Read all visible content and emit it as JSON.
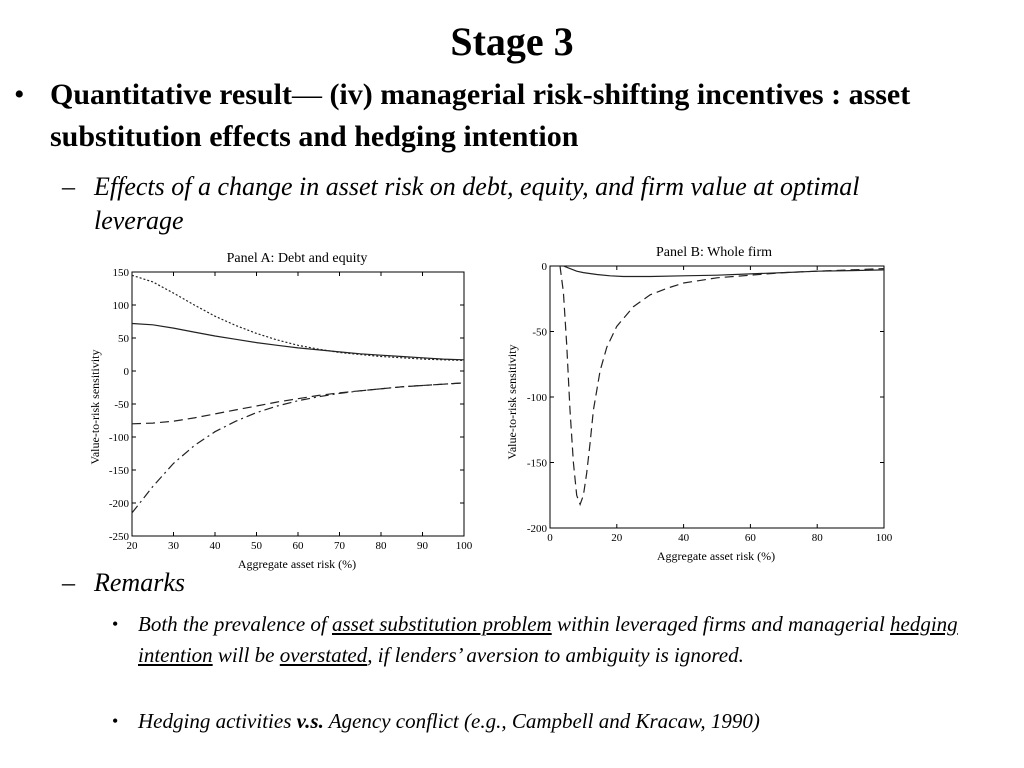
{
  "slide": {
    "title": "Stage 3",
    "bullet1": {
      "mark": "•",
      "lead": "Quantitative result",
      "dash": "—",
      "rest": " (iv) managerial risk-shifting incentives : asset substitution effects and hedging intention"
    },
    "sub1": {
      "mark": "–",
      "text": "Effects of a change in asset risk on debt, equity, and firm value at optimal leverage"
    },
    "sub2": {
      "mark": "–",
      "text": "Remarks"
    },
    "remark1": {
      "mark": "•",
      "p1": "Both the prevalence of ",
      "u1": "asset substitution problem",
      "p2": " within leveraged firms and managerial ",
      "u2": "hedging intention",
      "p3": " will be ",
      "u3": "overstated",
      "p4": ", if lenders’ aversion to ambiguity is ignored."
    },
    "remark2": {
      "mark": "•",
      "p1": "Hedging activities ",
      "b1": "v.s.",
      "p2": " Agency conflict (e.g., Campbell and Kracaw, 1990)"
    }
  },
  "chart_data": [
    {
      "type": "line",
      "title": "Panel A: Debt and equity",
      "xlabel": "Aggregate asset risk (%)",
      "ylabel": "Value-to-risk sensitivity",
      "xlim": [
        20,
        100
      ],
      "ylim": [
        -250,
        150
      ],
      "xticks": [
        20,
        30,
        40,
        50,
        60,
        70,
        80,
        90,
        100
      ],
      "yticks": [
        150,
        100,
        50,
        0,
        -50,
        -100,
        -150,
        -200,
        -250
      ],
      "grid": false,
      "series": [
        {
          "style": "dotted",
          "x": [
            20,
            25,
            30,
            35,
            40,
            45,
            50,
            55,
            60,
            65,
            70,
            75,
            80,
            85,
            90,
            95,
            100
          ],
          "values": [
            145,
            135,
            118,
            100,
            83,
            69,
            57,
            47,
            39,
            33,
            28,
            25,
            22,
            20,
            18,
            17,
            16
          ]
        },
        {
          "style": "solid",
          "x": [
            20,
            25,
            30,
            35,
            40,
            45,
            50,
            55,
            60,
            65,
            70,
            75,
            80,
            85,
            90,
            95,
            100
          ],
          "values": [
            72,
            70,
            65,
            59,
            53,
            48,
            43,
            39,
            35,
            32,
            29,
            26,
            24,
            22,
            20,
            18,
            17
          ]
        },
        {
          "style": "dashed",
          "x": [
            20,
            25,
            30,
            35,
            40,
            45,
            50,
            55,
            60,
            65,
            70,
            75,
            80,
            85,
            90,
            95,
            100
          ],
          "values": [
            -80,
            -79,
            -76,
            -71,
            -65,
            -59,
            -53,
            -47,
            -42,
            -37,
            -33,
            -30,
            -27,
            -24,
            -22,
            -20,
            -18
          ]
        },
        {
          "style": "dash-dot",
          "x": [
            20,
            25,
            30,
            35,
            40,
            45,
            50,
            55,
            60,
            65,
            70,
            75,
            80,
            85,
            90,
            95,
            100
          ],
          "values": [
            -215,
            -175,
            -140,
            -113,
            -92,
            -76,
            -63,
            -53,
            -45,
            -39,
            -34,
            -30,
            -27,
            -24,
            -22,
            -20,
            -18
          ]
        }
      ]
    },
    {
      "type": "line",
      "title": "Panel B: Whole firm",
      "xlabel": "Aggregate asset risk (%)",
      "ylabel": "Value-to-risk sensitivity",
      "xlim": [
        0,
        100
      ],
      "ylim": [
        -200,
        0
      ],
      "xticks": [
        0,
        20,
        40,
        60,
        80,
        100
      ],
      "yticks": [
        0,
        -50,
        -100,
        -150,
        -200
      ],
      "grid": false,
      "series": [
        {
          "style": "solid",
          "x": [
            4,
            6,
            8,
            10,
            14,
            18,
            22,
            26,
            30,
            40,
            50,
            60,
            70,
            80,
            90,
            100
          ],
          "values": [
            0,
            -2,
            -4,
            -5,
            -6.5,
            -7.5,
            -8,
            -8,
            -8,
            -7.5,
            -7,
            -6,
            -5,
            -4,
            -3.5,
            -3
          ]
        },
        {
          "style": "dashed",
          "x": [
            3,
            4,
            5,
            6,
            7,
            8,
            9,
            10,
            11,
            12,
            13,
            15,
            17,
            20,
            25,
            30,
            35,
            40,
            50,
            60,
            70,
            80,
            90,
            100
          ],
          "values": [
            0,
            -20,
            -60,
            -110,
            -150,
            -175,
            -182,
            -175,
            -158,
            -135,
            -110,
            -80,
            -62,
            -46,
            -31,
            -22,
            -17,
            -13,
            -9,
            -7,
            -5,
            -4,
            -3,
            -2
          ]
        }
      ]
    }
  ]
}
